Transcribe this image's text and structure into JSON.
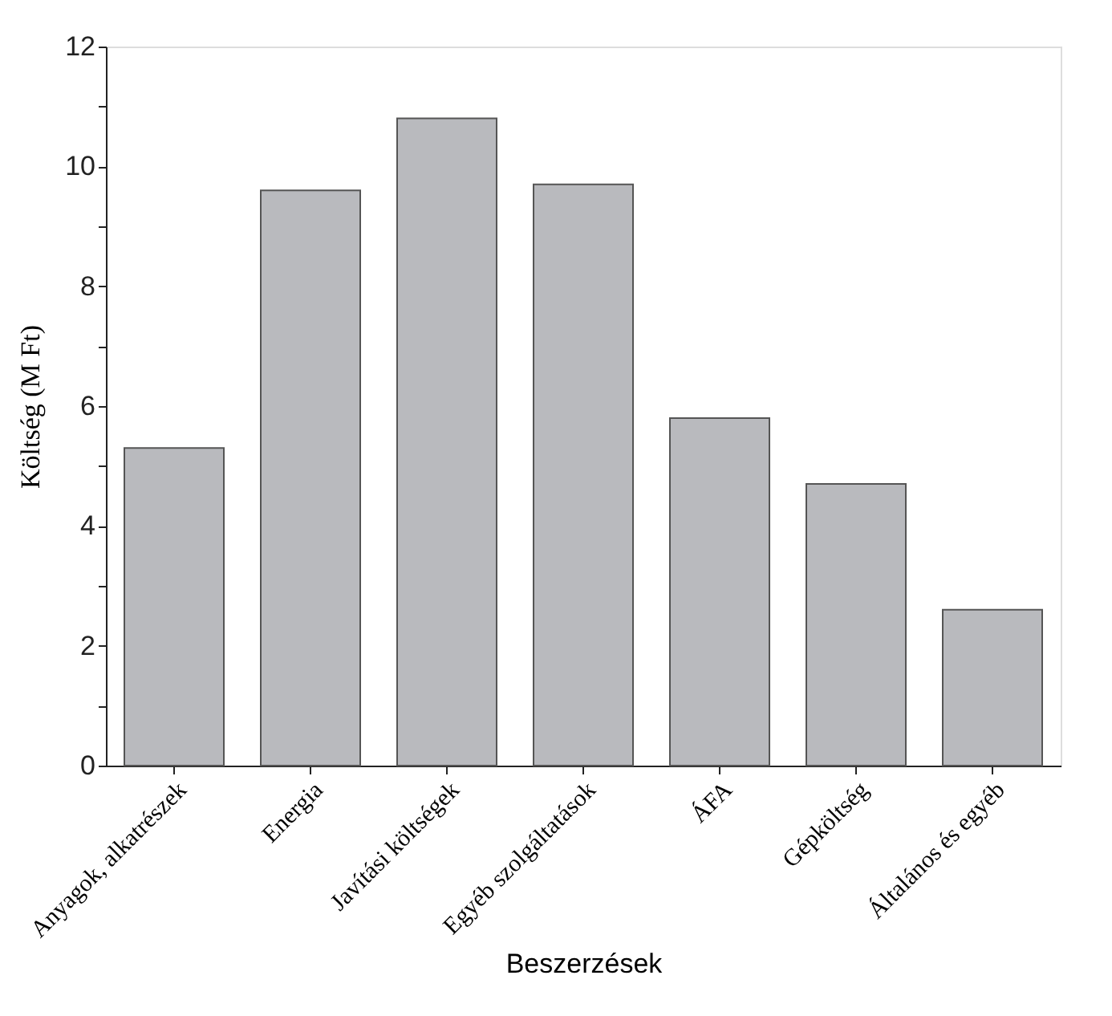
{
  "chart_data": {
    "type": "bar",
    "xlabel": "Beszerzések",
    "ylabel": "Költség (M Ft)",
    "categories": [
      "Anyagok, alkatrészek",
      "Energia",
      "Javítási költségek",
      "Egyéb szolgáltatások",
      "ÁFA",
      "Gépköltség",
      "Általános és egyéb"
    ],
    "values": [
      5.3,
      9.6,
      10.8,
      9.7,
      5.8,
      4.7,
      2.6
    ],
    "color": "#b9babe",
    "ylim": [
      0,
      12
    ],
    "yticks": [
      0,
      {
        "value": 1,
        "label": null
      },
      2,
      {
        "value": 3,
        "label": null
      },
      4,
      {
        "value": 5,
        "label": null
      },
      6,
      {
        "value": 7,
        "label": null
      },
      8,
      {
        "value": 9,
        "label": null
      },
      10,
      {
        "value": 11,
        "label": null
      },
      12
    ],
    "grid": false
  }
}
